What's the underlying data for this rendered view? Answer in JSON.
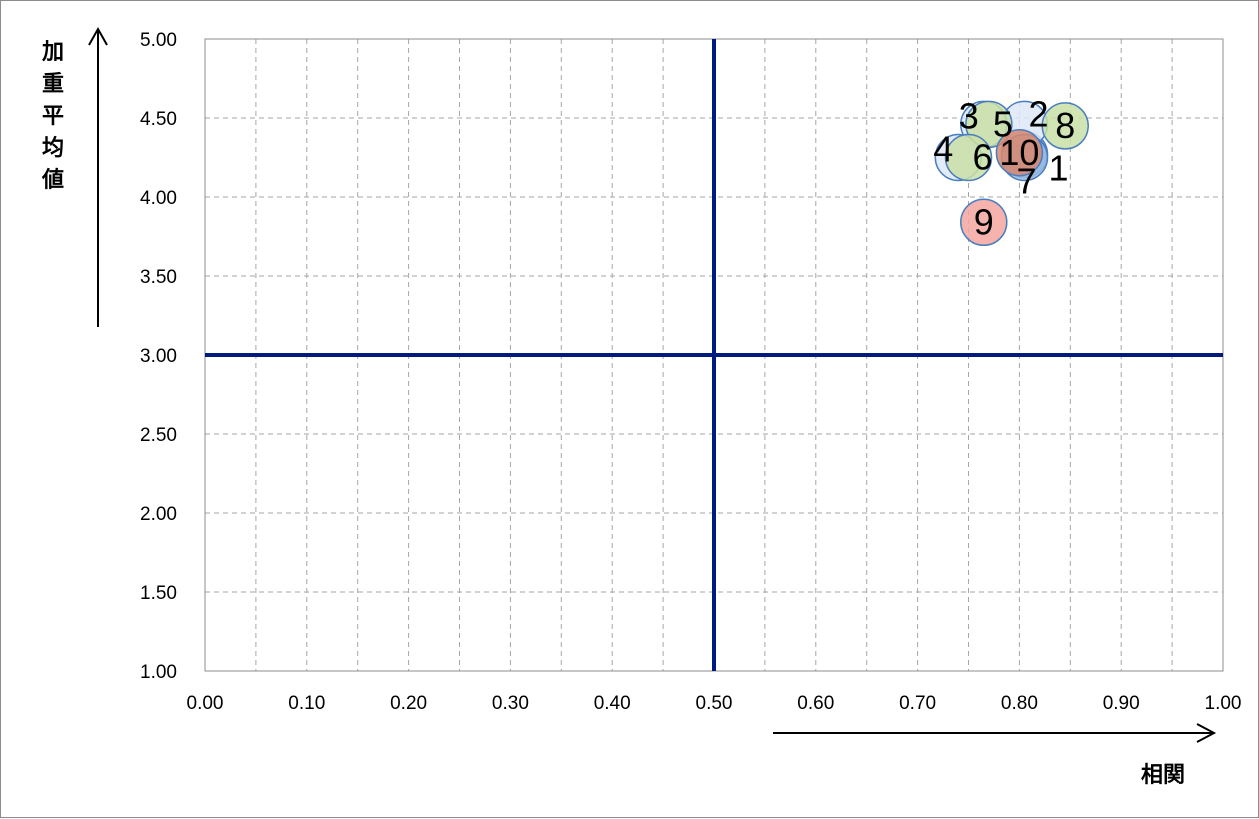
{
  "chart_data": {
    "type": "scatter",
    "title": "",
    "xlabel": "相関",
    "ylabel_chars": [
      "加",
      "重",
      "平",
      "均",
      "値"
    ],
    "xlim": [
      0.0,
      1.0
    ],
    "ylim": [
      1.0,
      5.0
    ],
    "x_ticks": [
      "0.00",
      "0.10",
      "0.20",
      "0.30",
      "0.40",
      "0.50",
      "0.60",
      "0.70",
      "0.80",
      "0.90",
      "1.00"
    ],
    "y_ticks": [
      "1.00",
      "1.50",
      "2.00",
      "2.50",
      "3.00",
      "3.50",
      "4.00",
      "4.50",
      "5.00"
    ],
    "grid": true,
    "reference_lines": {
      "x": 0.5,
      "y": 3.0
    },
    "points": [
      {
        "label": "1",
        "x": 0.805,
        "y": 4.27,
        "fill": "#6f9fd8",
        "text_offset": "below-right"
      },
      {
        "label": "2",
        "x": 0.805,
        "y": 4.46,
        "fill": "#dde7f6",
        "text_offset": "above"
      },
      {
        "label": "3",
        "x": 0.765,
        "y": 4.46,
        "fill": "#dde7f6",
        "text_offset": "left"
      },
      {
        "label": "4",
        "x": 0.74,
        "y": 4.25,
        "fill": "#dde7f6",
        "text_offset": "left"
      },
      {
        "label": "5",
        "x": 0.77,
        "y": 4.46,
        "fill": "#c9dfa6",
        "text_offset": "right"
      },
      {
        "label": "6",
        "x": 0.75,
        "y": 4.25,
        "fill": "#c9dfa6",
        "text_offset": "right"
      },
      {
        "label": "7",
        "x": 0.805,
        "y": 4.25,
        "fill": "#9bbbe3",
        "text_offset": "below-left"
      },
      {
        "label": "8",
        "x": 0.845,
        "y": 4.45,
        "fill": "#c9dfa6",
        "text_offset": "center"
      },
      {
        "label": "9",
        "x": 0.765,
        "y": 3.84,
        "fill": "#f5a6a0",
        "text_offset": "center"
      },
      {
        "label": "10",
        "x": 0.8,
        "y": 4.28,
        "fill": "#d8876f",
        "text_offset": "center"
      }
    ],
    "colors": {
      "reference_line": "#001a80",
      "grid": "#a6a6a6",
      "point_stroke": "#4a7ec0",
      "axis": "#8c8c8c"
    }
  }
}
